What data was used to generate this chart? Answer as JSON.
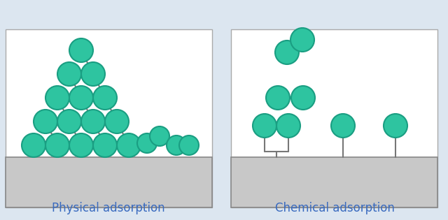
{
  "bg_color": "#dce6f0",
  "panel_bg": "#ffffff",
  "slab_color": "#c8c8c8",
  "slab_edge": "#888888",
  "molecule_color": "#2ec4a0",
  "molecule_edge": "#1a9e82",
  "bond_color": "#777777",
  "title_color": "#3a6bbf",
  "title_fontsize": 12,
  "label_left": "Physical adsorption",
  "label_right": "Chemical adsorption",
  "mol_r": 18,
  "figw": 6.4,
  "figh": 3.15,
  "dpi": 100
}
